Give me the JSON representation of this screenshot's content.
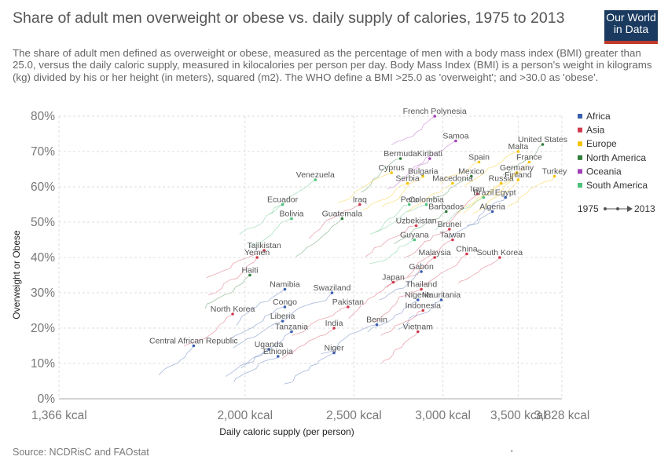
{
  "header": {
    "title": "Share of adult men overweight or obese vs. daily supply of calories, 1975 to 2013",
    "subtitle": "The share of adult men defined as overweight or obese, measured as the percentage of men with a body mass index (BMI) greater than 25.0, versus the daily caloric supply, measured in kilocalories per person per day. Body Mass Index (BMI) is a person's weight in kilograms (kg) divided by his or her height (in meters), squared (m2). The WHO define a BMI >25.0 as 'overweight'; and >30.0 as 'obese'.",
    "logo_line1": "Our World",
    "logo_line2": "in Data"
  },
  "footer": {
    "source": "Source: NCDRisC and FAOstat",
    "dot": "•"
  },
  "colors": {
    "Africa": "#3a5fb0",
    "Asia": "#d13a4e",
    "Europe": "#f5c400",
    "North America": "#2e7d3a",
    "Oceania": "#a23fb8",
    "South America": "#4cc27a",
    "grid": "#dddddd",
    "logo_bg": "#1a3a5f",
    "logo_accent": "#c0392b"
  },
  "chart_data": {
    "type": "scatter",
    "title": "Share of adult men overweight or obese vs. daily supply of calories, 1975 to 2013",
    "xlabel": "Daily caloric supply (per person)",
    "ylabel": "Overweight or Obese",
    "xlim": [
      1366,
      3828
    ],
    "ylim": [
      0,
      80
    ],
    "x_scale": "log",
    "x_ticks": [
      1366,
      2000,
      2500,
      3000,
      3500,
      3828
    ],
    "x_tick_labels": [
      "1,366 kcal",
      "2,000 kcal",
      "2,500 kcal",
      "3,000 kcal",
      "3,500 kcal",
      "3,828 kcal"
    ],
    "y_ticks": [
      0,
      10,
      20,
      30,
      40,
      50,
      60,
      70,
      80
    ],
    "y_tick_labels": [
      "0%",
      "10%",
      "20%",
      "30%",
      "40%",
      "50%",
      "60%",
      "70%",
      "80%"
    ],
    "grid": true,
    "legend_position": "right",
    "legend": [
      "Africa",
      "Asia",
      "Europe",
      "North America",
      "Oceania",
      "South America"
    ],
    "time_range": {
      "start": "1975",
      "end": "2013"
    },
    "series": [
      {
        "name": "French Polynesia",
        "region": "Oceania",
        "x": 2950,
        "y": 80
      },
      {
        "name": "Samoa",
        "region": "Oceania",
        "x": 3080,
        "y": 73
      },
      {
        "name": "United States",
        "region": "North America",
        "x": 3680,
        "y": 72
      },
      {
        "name": "Malta",
        "region": "Europe",
        "x": 3500,
        "y": 70
      },
      {
        "name": "Bermuda",
        "region": "North America",
        "x": 2750,
        "y": 68
      },
      {
        "name": "Kiribati",
        "region": "Oceania",
        "x": 2920,
        "y": 68
      },
      {
        "name": "Spain",
        "region": "Europe",
        "x": 3230,
        "y": 67
      },
      {
        "name": "France",
        "region": "Europe",
        "x": 3580,
        "y": 67
      },
      {
        "name": "Germany",
        "region": "Europe",
        "x": 3490,
        "y": 64
      },
      {
        "name": "Cyprus",
        "region": "Europe",
        "x": 2700,
        "y": 64
      },
      {
        "name": "Bulgaria",
        "region": "Europe",
        "x": 2880,
        "y": 63
      },
      {
        "name": "Mexico",
        "region": "North America",
        "x": 3180,
        "y": 63
      },
      {
        "name": "Turkey",
        "region": "Europe",
        "x": 3770,
        "y": 63
      },
      {
        "name": "Finland",
        "region": "Europe",
        "x": 3500,
        "y": 62
      },
      {
        "name": "Venezuela",
        "region": "South America",
        "x": 2310,
        "y": 62
      },
      {
        "name": "Serbia",
        "region": "Europe",
        "x": 2790,
        "y": 61
      },
      {
        "name": "Macedonia",
        "region": "Europe",
        "x": 3060,
        "y": 61
      },
      {
        "name": "Russia",
        "region": "Europe",
        "x": 3380,
        "y": 61
      },
      {
        "name": "Iran",
        "region": "Asia",
        "x": 3220,
        "y": 58
      },
      {
        "name": "Brazil",
        "region": "South America",
        "x": 3260,
        "y": 57
      },
      {
        "name": "Egypt",
        "region": "Africa",
        "x": 3410,
        "y": 57
      },
      {
        "name": "Iraq",
        "region": "Asia",
        "x": 2530,
        "y": 55
      },
      {
        "name": "Ecuador",
        "region": "South America",
        "x": 2160,
        "y": 55
      },
      {
        "name": "Peru",
        "region": "South America",
        "x": 2800,
        "y": 55
      },
      {
        "name": "Colombia",
        "region": "South America",
        "x": 2900,
        "y": 55
      },
      {
        "name": "Barbados",
        "region": "North America",
        "x": 3020,
        "y": 53
      },
      {
        "name": "Algeria",
        "region": "Africa",
        "x": 3320,
        "y": 53
      },
      {
        "name": "Bolivia",
        "region": "South America",
        "x": 2200,
        "y": 51
      },
      {
        "name": "Guatemala",
        "region": "North America",
        "x": 2440,
        "y": 51
      },
      {
        "name": "Uzbekistan",
        "region": "Asia",
        "x": 2840,
        "y": 49
      },
      {
        "name": "Brunei",
        "region": "Asia",
        "x": 3040,
        "y": 48
      },
      {
        "name": "Guyana",
        "region": "South America",
        "x": 2830,
        "y": 45
      },
      {
        "name": "Taiwan",
        "region": "Asia",
        "x": 3060,
        "y": 45
      },
      {
        "name": "China",
        "region": "Asia",
        "x": 3150,
        "y": 41
      },
      {
        "name": "Tajikistan",
        "region": "Asia",
        "x": 2080,
        "y": 42
      },
      {
        "name": "Malaysia",
        "region": "Asia",
        "x": 2950,
        "y": 40
      },
      {
        "name": "South Korea",
        "region": "Asia",
        "x": 3370,
        "y": 40
      },
      {
        "name": "Yemen",
        "region": "Asia",
        "x": 2050,
        "y": 40
      },
      {
        "name": "Gabon",
        "region": "Africa",
        "x": 2870,
        "y": 36
      },
      {
        "name": "Haiti",
        "region": "North America",
        "x": 2020,
        "y": 35
      },
      {
        "name": "Japan",
        "region": "Asia",
        "x": 2710,
        "y": 33
      },
      {
        "name": "Namibia",
        "region": "Africa",
        "x": 2170,
        "y": 31
      },
      {
        "name": "Swaziland",
        "region": "Africa",
        "x": 2390,
        "y": 30
      },
      {
        "name": "Thailand",
        "region": "Asia",
        "x": 2870,
        "y": 31
      },
      {
        "name": "Nigeria",
        "region": "Africa",
        "x": 2850,
        "y": 28
      },
      {
        "name": "Mauritania",
        "region": "Africa",
        "x": 2990,
        "y": 28
      },
      {
        "name": "Congo",
        "region": "Africa",
        "x": 2170,
        "y": 26
      },
      {
        "name": "Pakistan",
        "region": "Asia",
        "x": 2470,
        "y": 26
      },
      {
        "name": "Indonesia",
        "region": "Asia",
        "x": 2880,
        "y": 25
      },
      {
        "name": "North Korea",
        "region": "Asia",
        "x": 1950,
        "y": 24
      },
      {
        "name": "Liberia",
        "region": "Africa",
        "x": 2160,
        "y": 22
      },
      {
        "name": "India",
        "region": "Asia",
        "x": 2400,
        "y": 20
      },
      {
        "name": "Benin",
        "region": "Africa",
        "x": 2620,
        "y": 21
      },
      {
        "name": "Tanzania",
        "region": "Africa",
        "x": 2200,
        "y": 19
      },
      {
        "name": "Vietnam",
        "region": "Asia",
        "x": 2850,
        "y": 19
      },
      {
        "name": "Central African Republic",
        "region": "Africa",
        "x": 1800,
        "y": 15
      },
      {
        "name": "Uganda",
        "region": "Africa",
        "x": 2100,
        "y": 14
      },
      {
        "name": "Niger",
        "region": "Africa",
        "x": 2400,
        "y": 13
      },
      {
        "name": "Ethiopia",
        "region": "Africa",
        "x": 2140,
        "y": 12
      }
    ]
  }
}
